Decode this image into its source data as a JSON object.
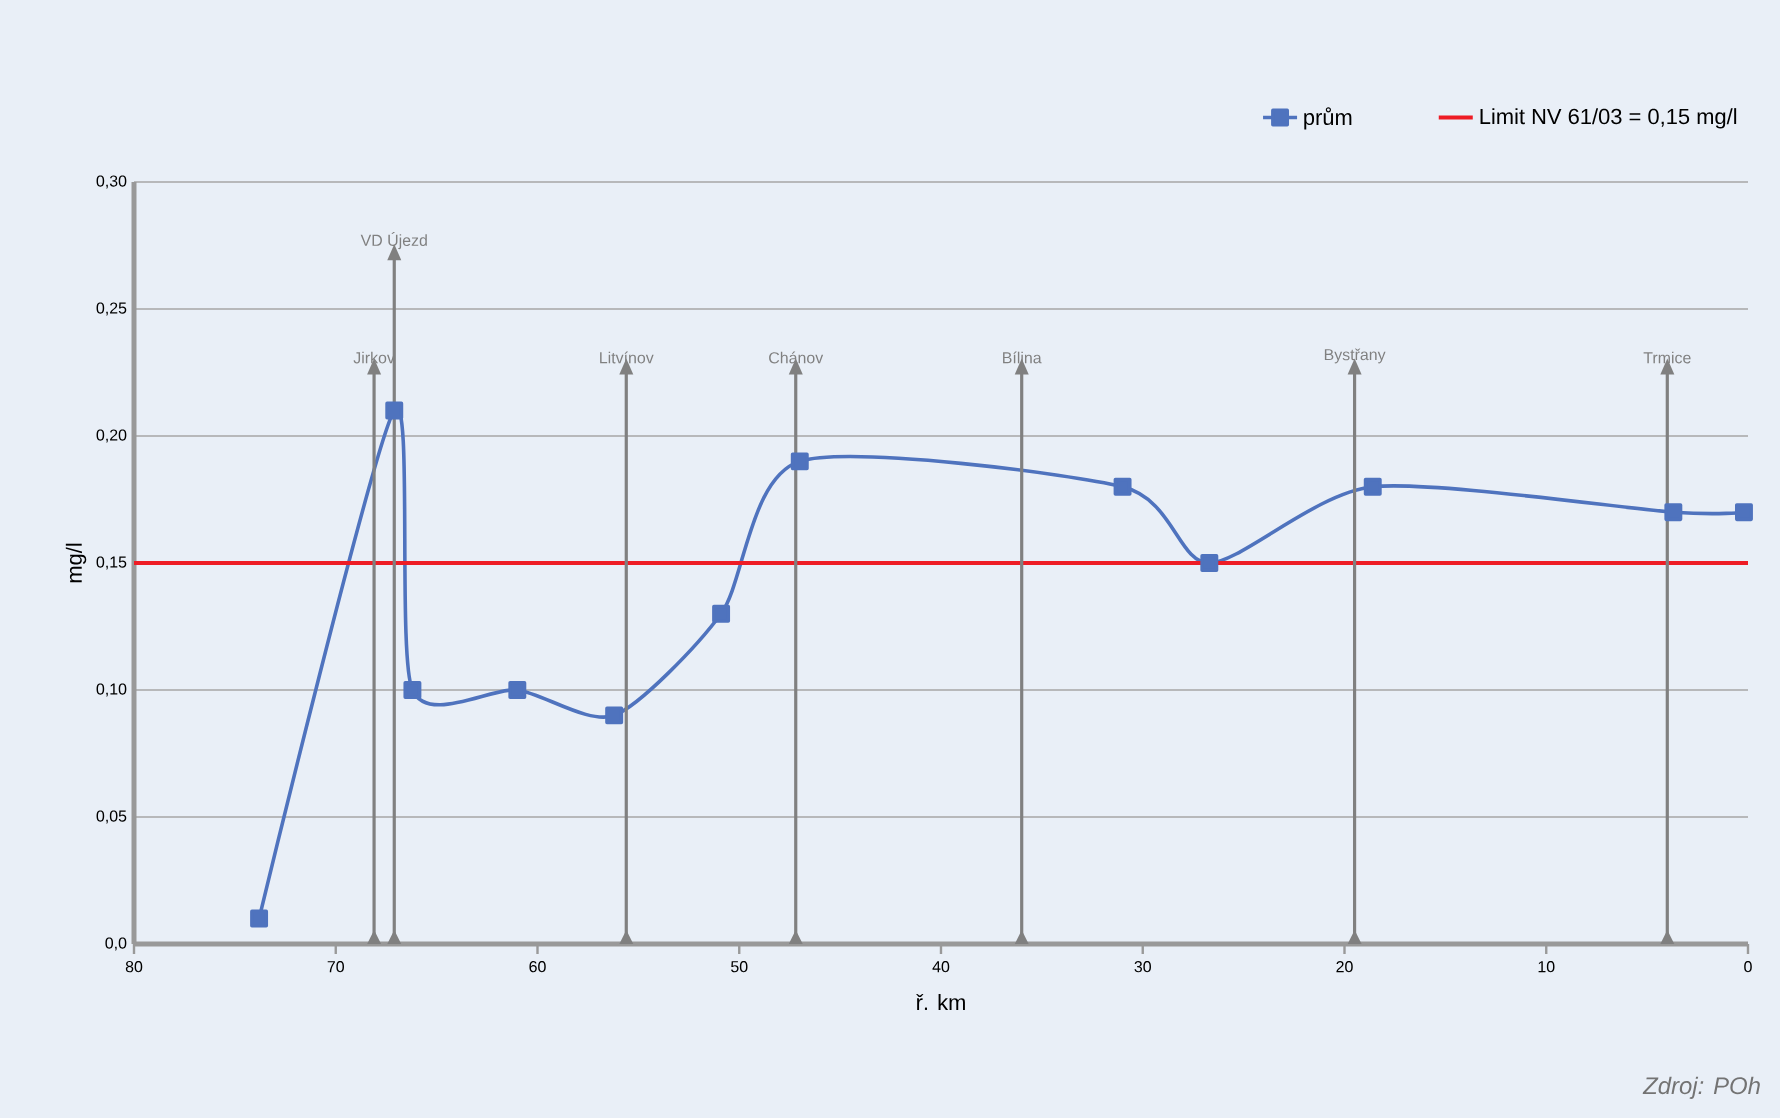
{
  "chart_data": {
    "type": "line",
    "xlabel": "ř. km",
    "ylabel": "mg/l",
    "x": [
      73.8,
      67.1,
      66.2,
      61.0,
      56.2,
      50.9,
      47.0,
      31.0,
      26.7,
      18.6,
      3.7,
      0.2
    ],
    "series": [
      {
        "name": "prům",
        "color": "#4f73be",
        "values": [
          0.01,
          0.21,
          0.1,
          0.1,
          0.09,
          0.13,
          0.19,
          0.18,
          0.15,
          0.18,
          0.17,
          0.17
        ]
      }
    ],
    "xlim": [
      80,
      0
    ],
    "xticks": [
      80,
      70,
      60,
      50,
      40,
      30,
      20,
      10,
      0
    ],
    "ylim": [
      0,
      0.3
    ],
    "yticks": [
      {
        "value": 0,
        "label": "0,0"
      },
      {
        "value": 0.05,
        "label": "0,05"
      },
      {
        "value": 0.1,
        "label": "0,10"
      },
      {
        "value": 0.15,
        "label": "0,15"
      },
      {
        "value": 0.2,
        "label": "0,20"
      },
      {
        "value": 0.25,
        "label": "0,25"
      },
      {
        "value": 0.3,
        "label": "0,30"
      }
    ],
    "ref_lines": [
      {
        "axis": "y",
        "value": 0.15,
        "label": "Limit NV 61/03 = 0,15 mg/l",
        "color": "#ee1c25"
      },
      {
        "axis": "x",
        "value": 68.1,
        "label": "Jirkov",
        "color": "#808080"
      },
      {
        "axis": "x",
        "value": 67.1,
        "label": "VD Újezd",
        "color": "#808080"
      },
      {
        "axis": "x",
        "value": 55.6,
        "label": "Litvínov",
        "color": "#808080"
      },
      {
        "axis": "x",
        "value": 47.2,
        "label": "Chánov",
        "color": "#808080"
      },
      {
        "axis": "x",
        "value": 36.0,
        "label": "Bílina",
        "color": "#808080"
      },
      {
        "axis": "x",
        "value": 19.5,
        "label": "Bystřany",
        "color": "#808080"
      },
      {
        "axis": "x",
        "value": 4.0,
        "label": "Trmice",
        "color": "#808080"
      }
    ],
    "annotations": [
      "Zdroj: POh"
    ],
    "grid": "y",
    "legend": "top right",
    "marker": "square",
    "line_style": "solid"
  }
}
